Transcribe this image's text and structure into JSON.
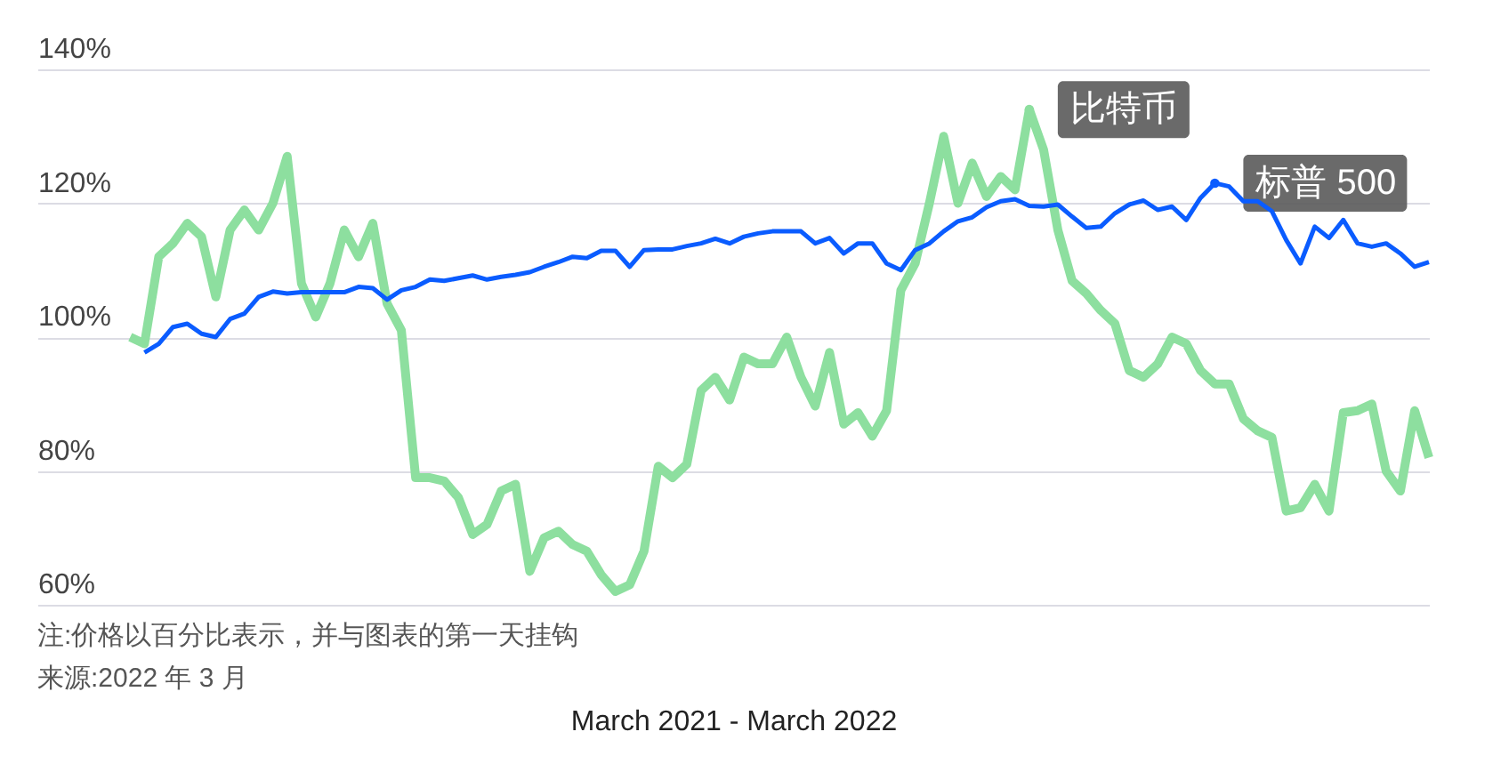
{
  "chart_data": {
    "type": "line",
    "categories": [
      null,
      null,
      null,
      null,
      null,
      null,
      null,
      null,
      null,
      null,
      null,
      null,
      null,
      null,
      null,
      null,
      null,
      null,
      null,
      null,
      null,
      null,
      null,
      null,
      null,
      null,
      null,
      null,
      null,
      null,
      null,
      null,
      null,
      null,
      null,
      null,
      null,
      null,
      null,
      null,
      null,
      null,
      null,
      null,
      null,
      null,
      null,
      null,
      null,
      null,
      null,
      null,
      null,
      null,
      null,
      null,
      null,
      null,
      null,
      null,
      null,
      null,
      null,
      null,
      null,
      null,
      null,
      null,
      null,
      null,
      null,
      null,
      null,
      null,
      null,
      null,
      null,
      null,
      null,
      null,
      null,
      null,
      null,
      null,
      null,
      null,
      null,
      null,
      null,
      null,
      null,
      null
    ],
    "series": [
      {
        "name": "比特币",
        "color": "#8ddf9f",
        "values": [
          100,
          99,
          112,
          114,
          117,
          115,
          106,
          116,
          119,
          116,
          120,
          127,
          108,
          103,
          108,
          116,
          112,
          117,
          105,
          101,
          79,
          79,
          78.5,
          76,
          70.5,
          72,
          77,
          78,
          65,
          70,
          71,
          69,
          68,
          64.5,
          62,
          63,
          68,
          80.7,
          79,
          81,
          92,
          94,
          90.6,
          97,
          96,
          96,
          100,
          94,
          89.7,
          97.7,
          87,
          88.7,
          85.2,
          89,
          107,
          111,
          120,
          130,
          120,
          126,
          121,
          124,
          122,
          134,
          128,
          116,
          108.4,
          106.5,
          104,
          102,
          95,
          94,
          96,
          100,
          99,
          95,
          93,
          93,
          87.8,
          86,
          85,
          74,
          74.5,
          78,
          74,
          88.7,
          89,
          90,
          80,
          77,
          89,
          82
        ]
      },
      {
        "name": "标普 500",
        "color": "#0a5cff",
        "values": [
          null,
          97.7,
          99,
          101.5,
          102,
          100.5,
          100,
          102.7,
          103.5,
          106,
          106.8,
          106.5,
          106.7,
          106.7,
          106.7,
          106.7,
          107.5,
          107.3,
          105.6,
          107,
          107.5,
          108.6,
          108.4,
          108.8,
          109.2,
          108.6,
          109,
          109.3,
          109.7,
          110.5,
          111.2,
          112,
          111.8,
          112.9,
          112.9,
          110.5,
          113,
          113.1,
          113.1,
          113.6,
          114,
          114.7,
          114,
          115,
          115.5,
          115.8,
          115.8,
          115.8,
          114,
          114.8,
          112.5,
          114,
          114,
          111,
          110,
          113,
          114,
          115.8,
          117.3,
          117.9,
          119.4,
          120.3,
          120.6,
          119.6,
          119.5,
          119.8,
          118,
          116.3,
          116.5,
          118.5,
          119.8,
          120.4,
          119,
          119.5,
          117.5,
          120.8,
          123,
          122.5,
          120.3,
          120.3,
          118.8,
          114.5,
          111,
          116.5,
          114.8,
          117.5,
          114,
          113.5,
          114,
          112.5,
          110.5,
          111.2
        ]
      }
    ],
    "ylim": [
      60,
      140
    ],
    "yticks": [
      {
        "value": 60,
        "label": "60%"
      },
      {
        "value": 80,
        "label": "80%"
      },
      {
        "value": 100,
        "label": "100%"
      },
      {
        "value": 120,
        "label": "120%"
      },
      {
        "value": 140,
        "label": "140%"
      }
    ],
    "grid": "y",
    "legend": false,
    "xlabel": "March 2021 - March 2022",
    "annotations": [
      "注:价格以百分比表示，并与图表的第一天挂钩",
      "来源:2022 年 3 月"
    ]
  }
}
